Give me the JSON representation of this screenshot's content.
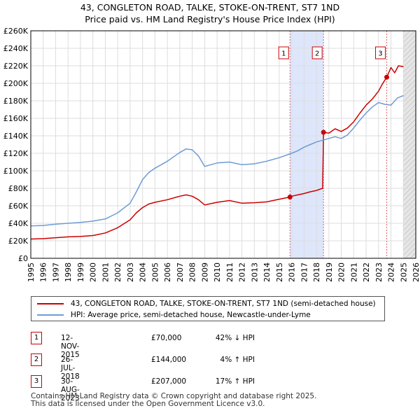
{
  "title_line1": "43, CONGLETON ROAD, TALKE, STOKE-ON-TRENT, ST7 1ND",
  "title_line2": "Price paid vs. HM Land Registry's House Price Index (HPI)",
  "chart_data": {
    "type": "line",
    "title": "43, CONGLETON ROAD, TALKE, STOKE-ON-TRENT, ST7 1ND — Price paid vs. HM Land Registry's House Price Index (HPI)",
    "xlabel": "",
    "ylabel": "",
    "xlim": [
      1995,
      2026
    ],
    "ylim": [
      0,
      260000
    ],
    "x_ticks": [
      "1995",
      "1996",
      "1997",
      "1998",
      "1999",
      "2000",
      "2001",
      "2002",
      "2003",
      "2004",
      "2005",
      "2006",
      "2007",
      "2008",
      "2009",
      "2010",
      "2011",
      "2012",
      "2013",
      "2014",
      "2015",
      "2016",
      "2017",
      "2018",
      "2019",
      "2020",
      "2021",
      "2022",
      "2023",
      "2024",
      "2025",
      "2026"
    ],
    "y_ticks": [
      {
        "value": 0,
        "label": "£0"
      },
      {
        "value": 20000,
        "label": "£20K"
      },
      {
        "value": 40000,
        "label": "£40K"
      },
      {
        "value": 60000,
        "label": "£60K"
      },
      {
        "value": 80000,
        "label": "£80K"
      },
      {
        "value": 100000,
        "label": "£100K"
      },
      {
        "value": 120000,
        "label": "£120K"
      },
      {
        "value": 140000,
        "label": "£140K"
      },
      {
        "value": 160000,
        "label": "£160K"
      },
      {
        "value": 180000,
        "label": "£180K"
      },
      {
        "value": 200000,
        "label": "£200K"
      },
      {
        "value": 220000,
        "label": "£220K"
      },
      {
        "value": 240000,
        "label": "£240K"
      },
      {
        "value": 260000,
        "label": "£260K"
      }
    ],
    "grid": true,
    "shaded_ranges": [
      {
        "from": 2015.87,
        "to": 2018.57,
        "color": "#dde6fb"
      },
      {
        "from": 2025.0,
        "to": 2026.0,
        "color": "#e6e6e6",
        "hatched": true
      }
    ],
    "series": [
      {
        "name": "43, CONGLETON ROAD, TALKE, STOKE-ON-TRENT, ST7 1ND (semi-detached house)",
        "color": "#cc0000",
        "x": [
          1995,
          1996,
          1997,
          1998,
          1999,
          2000,
          2001,
          2002,
          2003,
          2003.5,
          2004,
          2004.5,
          2005,
          2006,
          2007,
          2007.5,
          2008,
          2008.5,
          2009,
          2009.5,
          2010,
          2011,
          2012,
          2013,
          2014,
          2015,
          2015.87,
          2016,
          2016.5,
          2017,
          2017.5,
          2018,
          2018.5,
          2018.57,
          2019,
          2019.5,
          2020,
          2020.5,
          2021,
          2021.5,
          2022,
          2022.5,
          2023,
          2023.3,
          2023.66,
          2024,
          2024.3,
          2024.6,
          2025
        ],
        "values": [
          22000,
          22500,
          23500,
          24500,
          25000,
          26000,
          29000,
          35000,
          44000,
          52000,
          58000,
          62000,
          64000,
          67000,
          71000,
          72500,
          71000,
          67000,
          61000,
          62500,
          64000,
          66000,
          63000,
          63500,
          64500,
          67500,
          70000,
          71000,
          72500,
          74000,
          76000,
          77500,
          80000,
          144000,
          143000,
          148000,
          145000,
          149000,
          156000,
          166000,
          175000,
          182000,
          191000,
          199000,
          207000,
          218000,
          212000,
          220000,
          219000
        ]
      },
      {
        "name": "HPI: Average price, semi-detached house, Newcastle-under-Lyme",
        "color": "#6f9bd4",
        "x": [
          1995,
          1996,
          1997,
          1998,
          1999,
          2000,
          2001,
          2002,
          2003,
          2003.5,
          2004,
          2004.5,
          2005,
          2006,
          2007,
          2007.5,
          2008,
          2008.5,
          2009,
          2009.5,
          2010,
          2011,
          2012,
          2013,
          2014,
          2015,
          2016,
          2016.5,
          2017,
          2017.5,
          2018,
          2018.5,
          2019,
          2019.5,
          2020,
          2020.5,
          2021,
          2021.5,
          2022,
          2022.5,
          2023,
          2023.5,
          2024,
          2024.5,
          2025
        ],
        "values": [
          37000,
          37500,
          39000,
          40000,
          41000,
          42500,
          45000,
          52000,
          63000,
          76000,
          90000,
          98000,
          103000,
          111000,
          121000,
          125000,
          124000,
          117000,
          105000,
          107000,
          109000,
          110000,
          107000,
          108000,
          111000,
          115000,
          120000,
          123000,
          127000,
          130000,
          133000,
          135000,
          137000,
          139000,
          137000,
          141000,
          149000,
          158000,
          166000,
          173000,
          178000,
          176000,
          175000,
          183000,
          186000
        ]
      }
    ],
    "markers": [
      {
        "label": "1",
        "x": 2015.87,
        "value": 70000
      },
      {
        "label": "2",
        "x": 2018.57,
        "value": 144000
      },
      {
        "label": "3",
        "x": 2023.66,
        "value": 207000
      }
    ]
  },
  "legend": {
    "property_label": "43, CONGLETON ROAD, TALKE, STOKE-ON-TRENT, ST7 1ND (semi-detached house)",
    "property_color": "#cc0000",
    "hpi_label": "HPI: Average price, semi-detached house, Newcastle-under-Lyme",
    "hpi_color": "#6f9bd4"
  },
  "transactions": [
    {
      "num": "1",
      "date": "12-NOV-2015",
      "price": "£70,000",
      "hpi": "42% ↓ HPI"
    },
    {
      "num": "2",
      "date": "26-JUL-2018",
      "price": "£144,000",
      "hpi": "4% ↑ HPI"
    },
    {
      "num": "3",
      "date": "30-AUG-2023",
      "price": "£207,000",
      "hpi": "17% ↑ HPI"
    }
  ],
  "footer_line1": "Contains HM Land Registry data © Crown copyright and database right 2025.",
  "footer_line2": "This data is licensed under the Open Government Licence v3.0."
}
